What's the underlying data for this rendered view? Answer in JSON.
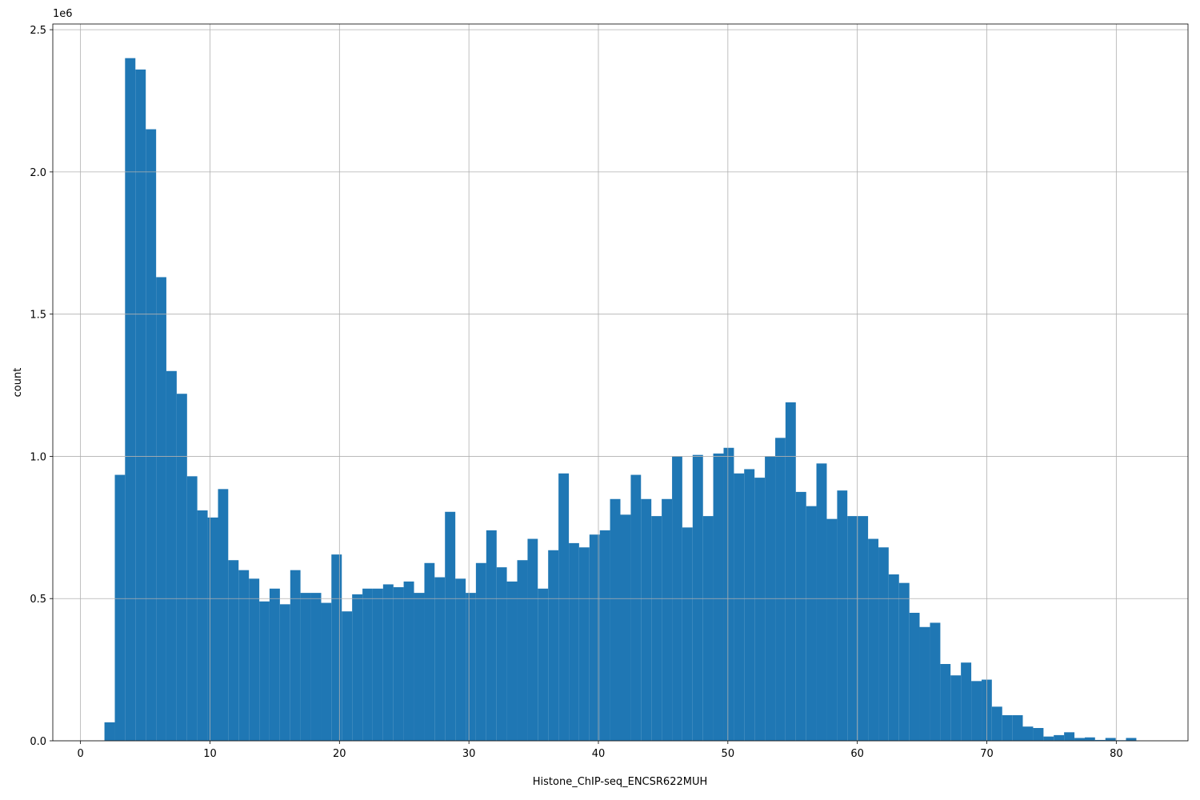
{
  "chart_data": {
    "type": "histogram",
    "x_label": "Histone_ChIP-seq_ENCSR622MUH",
    "y_label": "count",
    "y_offset_label": "1e6",
    "color": "#1f77b4",
    "grid": true,
    "bins": [
      1.85,
      2.65,
      3.44,
      4.24,
      5.04,
      5.84,
      6.63,
      7.43,
      8.23,
      9.02,
      9.82,
      10.62,
      11.41,
      12.21,
      13.01,
      13.81,
      14.6,
      15.4,
      16.2,
      16.99,
      17.79,
      18.59,
      19.38,
      20.18,
      20.98,
      21.78,
      22.57,
      23.37,
      24.17,
      24.96,
      25.76,
      26.56,
      27.35,
      28.15,
      28.95,
      29.75,
      30.54,
      31.34,
      32.14,
      32.93,
      33.73,
      34.53,
      35.32,
      36.12,
      36.92,
      37.72,
      38.51,
      39.31,
      40.11,
      40.9,
      41.7,
      42.5,
      43.29,
      44.09,
      44.89,
      45.69,
      46.48,
      47.28,
      48.08,
      48.87,
      49.67,
      50.47,
      51.26,
      52.06,
      52.86,
      53.66,
      54.45,
      55.25,
      56.05,
      56.84,
      57.64,
      58.44,
      59.23,
      60.03,
      60.83,
      61.63,
      62.42,
      63.22,
      64.02,
      64.81,
      65.61,
      66.41,
      67.2,
      68,
      68.8,
      69.6,
      70.39,
      71.19,
      71.99,
      72.78,
      73.58,
      74.38,
      75.17,
      75.97,
      76.77,
      77.57,
      78.36,
      79.16,
      79.96,
      80.75,
      81.55
    ],
    "values": [
      0.065,
      0.935,
      2.4,
      2.36,
      2.15,
      1.63,
      1.3,
      1.22,
      0.93,
      0.81,
      0.785,
      0.885,
      0.635,
      0.6,
      0.57,
      0.49,
      0.535,
      0.48,
      0.6,
      0.52,
      0.52,
      0.485,
      0.655,
      0.455,
      0.515,
      0.535,
      0.535,
      0.55,
      0.54,
      0.56,
      0.52,
      0.625,
      0.575,
      0.805,
      0.57,
      0.52,
      0.625,
      0.74,
      0.61,
      0.56,
      0.635,
      0.71,
      0.535,
      0.67,
      0.94,
      0.695,
      0.68,
      0.725,
      0.74,
      0.85,
      0.795,
      0.935,
      0.85,
      0.79,
      0.85,
      1.0,
      0.75,
      1.005,
      0.79,
      1.01,
      1.03,
      0.94,
      0.955,
      0.925,
      1.0,
      1.065,
      1.19,
      0.875,
      0.825,
      0.975,
      0.78,
      0.88,
      0.79,
      0.79,
      0.71,
      0.68,
      0.585,
      0.555,
      0.45,
      0.4,
      0.415,
      0.27,
      0.23,
      0.275,
      0.21,
      0.215,
      0.12,
      0.09,
      0.09,
      0.05,
      0.045,
      0.015,
      0.02,
      0.03,
      0.01,
      0.012,
      0.003,
      0.01,
      0.002,
      0.01
    ],
    "xlim": [
      -2.14,
      85.54
    ],
    "xticks": [
      0,
      10,
      20,
      30,
      40,
      50,
      60,
      70,
      80
    ],
    "ylim": [
      0,
      2.52
    ],
    "yticks": [
      {
        "value": 0,
        "label": "0.0"
      },
      0.5,
      {
        "value": 1,
        "label": "1.0"
      },
      1.5,
      {
        "value": 2,
        "label": "2.0"
      },
      2.5
    ]
  }
}
